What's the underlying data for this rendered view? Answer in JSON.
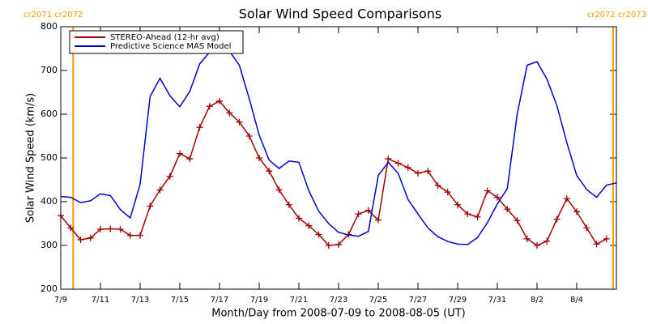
{
  "chart_data": {
    "type": "line",
    "title": "Solar Wind Speed Comparisons",
    "x_label": "Month/Day from 2008-07-09 to 2008-08-05 (UT)",
    "y_label": "Solar Wind Speed (km/s)",
    "x": [
      "2008-07-09 00:00",
      "2008-07-09 12:00",
      "2008-07-10 00:00",
      "2008-07-10 12:00",
      "2008-07-11 00:00",
      "2008-07-11 12:00",
      "2008-07-12 00:00",
      "2008-07-12 12:00",
      "2008-07-13 00:00",
      "2008-07-13 12:00",
      "2008-07-14 00:00",
      "2008-07-14 12:00",
      "2008-07-15 00:00",
      "2008-07-15 12:00",
      "2008-07-16 00:00",
      "2008-07-16 12:00",
      "2008-07-17 00:00",
      "2008-07-17 12:00",
      "2008-07-18 00:00",
      "2008-07-18 12:00",
      "2008-07-19 00:00",
      "2008-07-19 12:00",
      "2008-07-20 00:00",
      "2008-07-20 12:00",
      "2008-07-21 00:00",
      "2008-07-21 12:00",
      "2008-07-22 00:00",
      "2008-07-22 12:00",
      "2008-07-23 00:00",
      "2008-07-23 12:00",
      "2008-07-24 00:00",
      "2008-07-24 12:00",
      "2008-07-25 00:00",
      "2008-07-25 12:00",
      "2008-07-26 00:00",
      "2008-07-26 12:00",
      "2008-07-27 00:00",
      "2008-07-27 12:00",
      "2008-07-28 00:00",
      "2008-07-28 12:00",
      "2008-07-29 00:00",
      "2008-07-29 12:00",
      "2008-07-30 00:00",
      "2008-07-30 12:00",
      "2008-07-31 00:00",
      "2008-07-31 12:00",
      "2008-08-01 00:00",
      "2008-08-01 12:00",
      "2008-08-02 00:00",
      "2008-08-02 12:00",
      "2008-08-03 00:00",
      "2008-08-03 12:00",
      "2008-08-04 00:00",
      "2008-08-04 12:00",
      "2008-08-05 00:00",
      "2008-08-05 12:00",
      "2008-08-06 00:00"
    ],
    "series": [
      {
        "name": "STEREO-Ahead (12-hr avg)",
        "color": "#a00000",
        "marker": "+",
        "values": [
          368,
          340,
          313,
          317,
          337,
          338,
          337,
          323,
          323,
          390,
          427,
          458,
          510,
          498,
          570,
          618,
          630,
          603,
          582,
          550,
          500,
          470,
          427,
          393,
          362,
          345,
          325,
          300,
          302,
          325,
          372,
          380,
          358,
          498,
          488,
          478,
          465,
          470,
          437,
          422,
          393,
          372,
          365,
          425,
          410,
          383,
          357,
          315,
          300,
          310,
          360,
          407,
          377,
          340,
          303,
          315,
          null
        ]
      },
      {
        "name": "Predictive Science MAS Model",
        "color": "#0000cc",
        "values": [
          412,
          410,
          398,
          402,
          418,
          414,
          382,
          363,
          440,
          640,
          682,
          642,
          617,
          652,
          715,
          742,
          748,
          744,
          712,
          635,
          552,
          495,
          476,
          493,
          490,
          425,
          378,
          350,
          330,
          324,
          321,
          332,
          460,
          490,
          465,
          405,
          372,
          340,
          320,
          309,
          303,
          302,
          318,
          352,
          395,
          430,
          600,
          712,
          720,
          680,
          620,
          535,
          460,
          428,
          410,
          438,
          443
        ]
      }
    ],
    "xlim": [
      "2008-07-09",
      "2008-08-06"
    ],
    "xticks": [
      {
        "value": "2008-07-09",
        "label": "7/9"
      },
      {
        "value": "2008-07-11",
        "label": "7/11"
      },
      {
        "value": "2008-07-13",
        "label": "7/13"
      },
      {
        "value": "2008-07-15",
        "label": "7/15"
      },
      {
        "value": "2008-07-17",
        "label": "7/17"
      },
      {
        "value": "2008-07-19",
        "label": "7/19"
      },
      {
        "value": "2008-07-21",
        "label": "7/21"
      },
      {
        "value": "2008-07-23",
        "label": "7/23"
      },
      {
        "value": "2008-07-25",
        "label": "7/25"
      },
      {
        "value": "2008-07-27",
        "label": "7/27"
      },
      {
        "value": "2008-07-29",
        "label": "7/29"
      },
      {
        "value": "2008-07-31",
        "label": "7/31"
      },
      {
        "value": "2008-08-02",
        "label": "8/2"
      },
      {
        "value": "2008-08-04",
        "label": "8/4"
      }
    ],
    "ylim": [
      200,
      800
    ],
    "yticks": [
      200,
      300,
      400,
      500,
      600,
      700,
      800
    ],
    "legend": "upper left",
    "annotations": [
      {
        "x": "2008-07-09 15:00",
        "label": "cr2071 cr2072",
        "color": "#ff9900"
      },
      {
        "x": "2008-08-05 20:00",
        "label": "cr2072 cr2073",
        "color": "#ff9900"
      }
    ]
  }
}
